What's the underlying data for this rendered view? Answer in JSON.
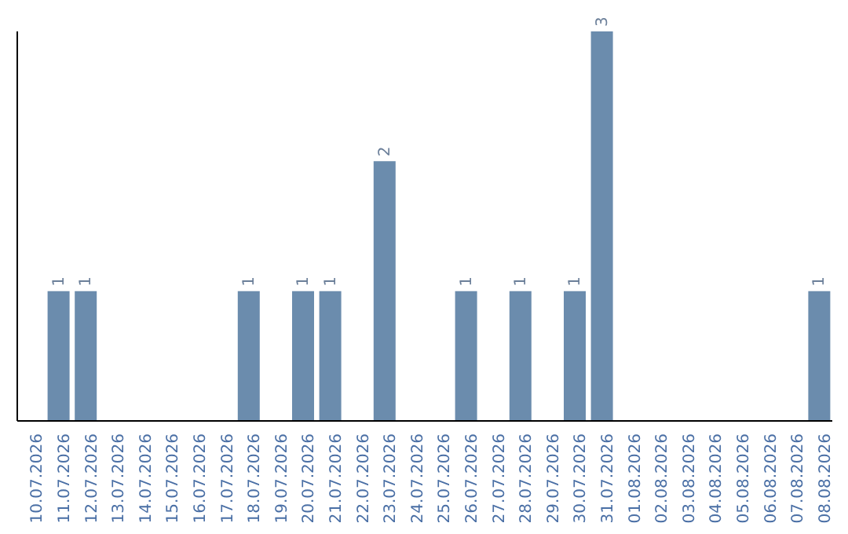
{
  "chart_data": {
    "type": "bar",
    "categories": [
      "10.07.2026",
      "11.07.2026",
      "12.07.2026",
      "13.07.2026",
      "14.07.2026",
      "15.07.2026",
      "16.07.2026",
      "17.07.2026",
      "18.07.2026",
      "19.07.2026",
      "20.07.2026",
      "21.07.2026",
      "22.07.2026",
      "23.07.2026",
      "24.07.2026",
      "25.07.2026",
      "26.07.2026",
      "27.07.2026",
      "28.07.2026",
      "29.07.2026",
      "30.07.2026",
      "31.07.2026",
      "01.08.2026",
      "02.08.2026",
      "03.08.2026",
      "04.08.2026",
      "05.08.2026",
      "06.08.2026",
      "07.08.2026",
      "08.08.2026"
    ],
    "values": [
      0,
      1,
      1,
      0,
      0,
      0,
      0,
      0,
      1,
      0,
      1,
      1,
      0,
      2,
      0,
      0,
      1,
      0,
      1,
      0,
      1,
      3,
      0,
      0,
      0,
      0,
      0,
      0,
      0,
      1
    ],
    "value_labels": [
      null,
      "1",
      "1",
      null,
      null,
      null,
      null,
      null,
      "1",
      null,
      "1",
      "1",
      null,
      "2",
      null,
      null,
      "1",
      null,
      "1",
      null,
      "1",
      "3",
      null,
      null,
      null,
      null,
      null,
      null,
      null,
      "1"
    ],
    "color": "#6b8cad",
    "tick_labels": "x",
    "grid": false,
    "legend": false
  }
}
